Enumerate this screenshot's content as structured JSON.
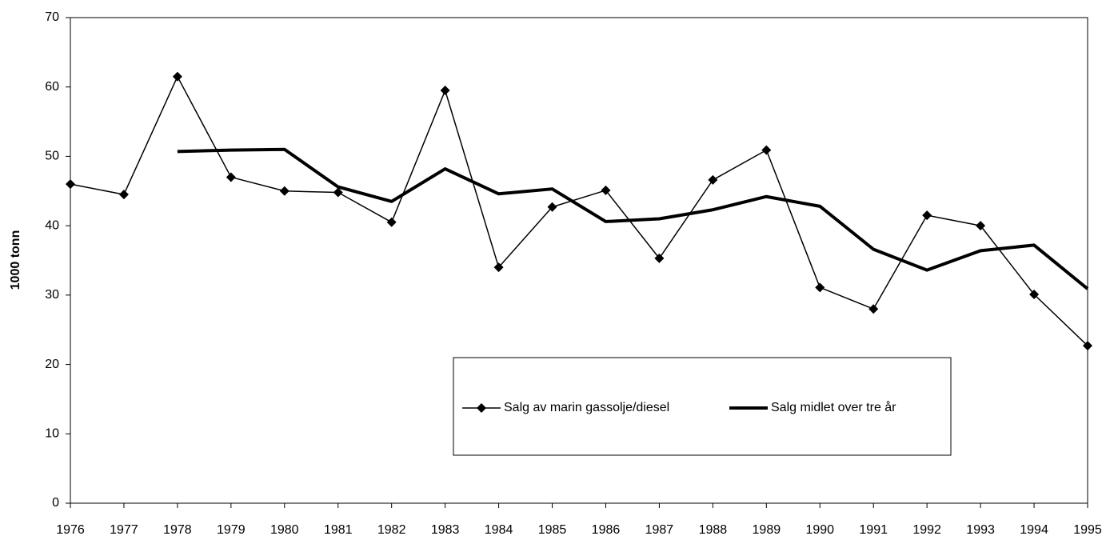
{
  "chart_data": {
    "type": "line",
    "y_label": "1000 tonn",
    "x": [
      1976,
      1977,
      1978,
      1979,
      1980,
      1981,
      1982,
      1983,
      1984,
      1985,
      1986,
      1987,
      1988,
      1989,
      1990,
      1991,
      1992,
      1993,
      1994,
      1995
    ],
    "xlim": [
      1976,
      1995
    ],
    "xticks": [
      1976,
      1977,
      1978,
      1979,
      1980,
      1981,
      1982,
      1983,
      1984,
      1985,
      1986,
      1987,
      1988,
      1989,
      1990,
      1991,
      1992,
      1993,
      1994,
      1995
    ],
    "ylim": [
      0,
      70
    ],
    "yticks": [
      0,
      10,
      20,
      30,
      40,
      50,
      60,
      70
    ],
    "series": [
      {
        "name": "Salg av marin gassolje/diesel",
        "color": "#000000",
        "marker": "diamond",
        "values": [
          46.0,
          44.5,
          61.5,
          47.0,
          45.0,
          44.8,
          40.5,
          59.5,
          34.0,
          42.7,
          45.1,
          35.3,
          46.6,
          50.9,
          31.1,
          28.0,
          41.5,
          40.0,
          30.1,
          22.7
        ]
      },
      {
        "name": "Salg midlet over tre år",
        "color": "#000000",
        "marker": "none",
        "values": [
          null,
          null,
          50.7,
          50.9,
          51.0,
          45.6,
          43.5,
          48.2,
          44.6,
          45.3,
          40.6,
          41.0,
          42.3,
          44.2,
          42.8,
          36.6,
          33.6,
          36.4,
          37.2,
          30.9
        ]
      }
    ]
  }
}
